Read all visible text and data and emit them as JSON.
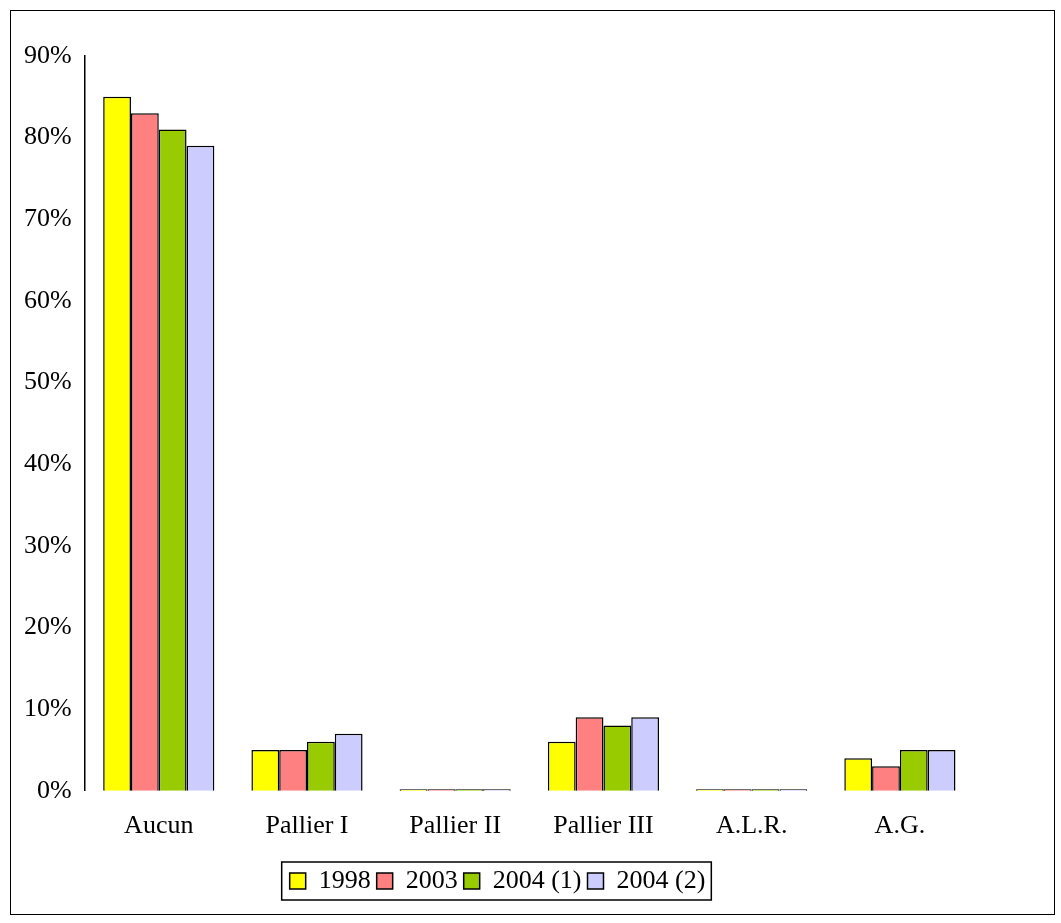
{
  "chart_data": {
    "type": "bar",
    "categories": [
      "Aucun",
      "Pallier I",
      "Pallier II",
      "Pallier III",
      "A.L.R.",
      "A.G."
    ],
    "series": [
      {
        "name": "1998",
        "color": "#ffff00",
        "values": [
          85,
          5,
          0,
          6,
          0,
          4
        ]
      },
      {
        "name": "2003",
        "color": "#ff8080",
        "values": [
          83,
          5,
          0,
          9,
          0,
          3
        ]
      },
      {
        "name": "2004 (1)",
        "color": "#99cc00",
        "values": [
          81,
          6,
          0,
          8,
          0,
          5
        ]
      },
      {
        "name": "2004 (2)",
        "color": "#ccccff",
        "values": [
          79,
          7,
          0,
          9,
          0,
          5
        ]
      }
    ],
    "ylim": [
      0,
      90
    ],
    "yticks": [
      {
        "value": 0,
        "label": "0%"
      },
      {
        "value": 10,
        "label": "10%"
      },
      {
        "value": 20,
        "label": "20%"
      },
      {
        "value": 30,
        "label": "30%"
      },
      {
        "value": 40,
        "label": "40%"
      },
      {
        "value": 50,
        "label": "50%"
      },
      {
        "value": 60,
        "label": "60%"
      },
      {
        "value": 70,
        "label": "70%"
      },
      {
        "value": 80,
        "label": "80%"
      },
      {
        "value": 90,
        "label": "90%"
      }
    ],
    "grid": false,
    "legend": "bottom"
  }
}
